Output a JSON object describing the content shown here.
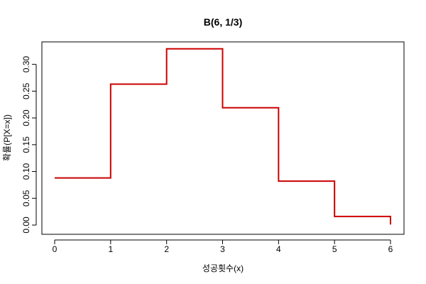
{
  "chart_data": {
    "type": "line",
    "step": "post",
    "title": "B(6, 1/3)",
    "xlabel": "성공횟수(x)",
    "ylabel": "확률(P[X=x])",
    "xlim": [
      0,
      6
    ],
    "ylim": [
      0,
      0.33
    ],
    "xticks": [
      "0",
      "1",
      "2",
      "3",
      "4",
      "5",
      "6"
    ],
    "yticks": [
      "0.00",
      "0.05",
      "0.10",
      "0.15",
      "0.20",
      "0.25",
      "0.30"
    ],
    "x": [
      0,
      1,
      2,
      3,
      4,
      5,
      6
    ],
    "series": [
      {
        "values": [
          0.088,
          0.263,
          0.329,
          0.219,
          0.082,
          0.016,
          0.001
        ],
        "color": "#cc0000"
      }
    ],
    "grid": false
  }
}
